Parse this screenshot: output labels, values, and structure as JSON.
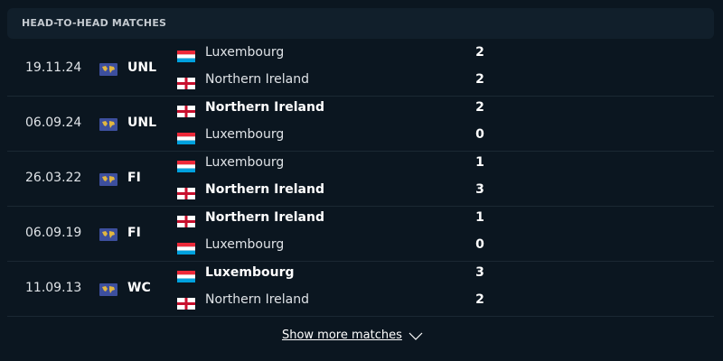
{
  "header": {
    "title": "HEAD-TO-HEAD MATCHES"
  },
  "matches": [
    {
      "date": "19.11.24",
      "competition": "UNL",
      "teams": [
        {
          "name": "Luxembourg",
          "flag": "lu",
          "score": 2,
          "bold": false
        },
        {
          "name": "Northern Ireland",
          "flag": "nir",
          "score": 2,
          "bold": false
        }
      ]
    },
    {
      "date": "06.09.24",
      "competition": "UNL",
      "teams": [
        {
          "name": "Northern Ireland",
          "flag": "nir",
          "score": 2,
          "bold": true
        },
        {
          "name": "Luxembourg",
          "flag": "lu",
          "score": 0,
          "bold": false
        }
      ]
    },
    {
      "date": "26.03.22",
      "competition": "FI",
      "teams": [
        {
          "name": "Luxembourg",
          "flag": "lu",
          "score": 1,
          "bold": false
        },
        {
          "name": "Northern Ireland",
          "flag": "nir",
          "score": 3,
          "bold": true
        }
      ]
    },
    {
      "date": "06.09.19",
      "competition": "FI",
      "teams": [
        {
          "name": "Northern Ireland",
          "flag": "nir",
          "score": 1,
          "bold": true
        },
        {
          "name": "Luxembourg",
          "flag": "lu",
          "score": 0,
          "bold": false
        }
      ]
    },
    {
      "date": "11.09.13",
      "competition": "WC",
      "teams": [
        {
          "name": "Luxembourg",
          "flag": "lu",
          "score": 3,
          "bold": true
        },
        {
          "name": "Northern Ireland",
          "flag": "nir",
          "score": 2,
          "bold": false
        }
      ]
    }
  ],
  "footer": {
    "button": "Show more matches"
  }
}
